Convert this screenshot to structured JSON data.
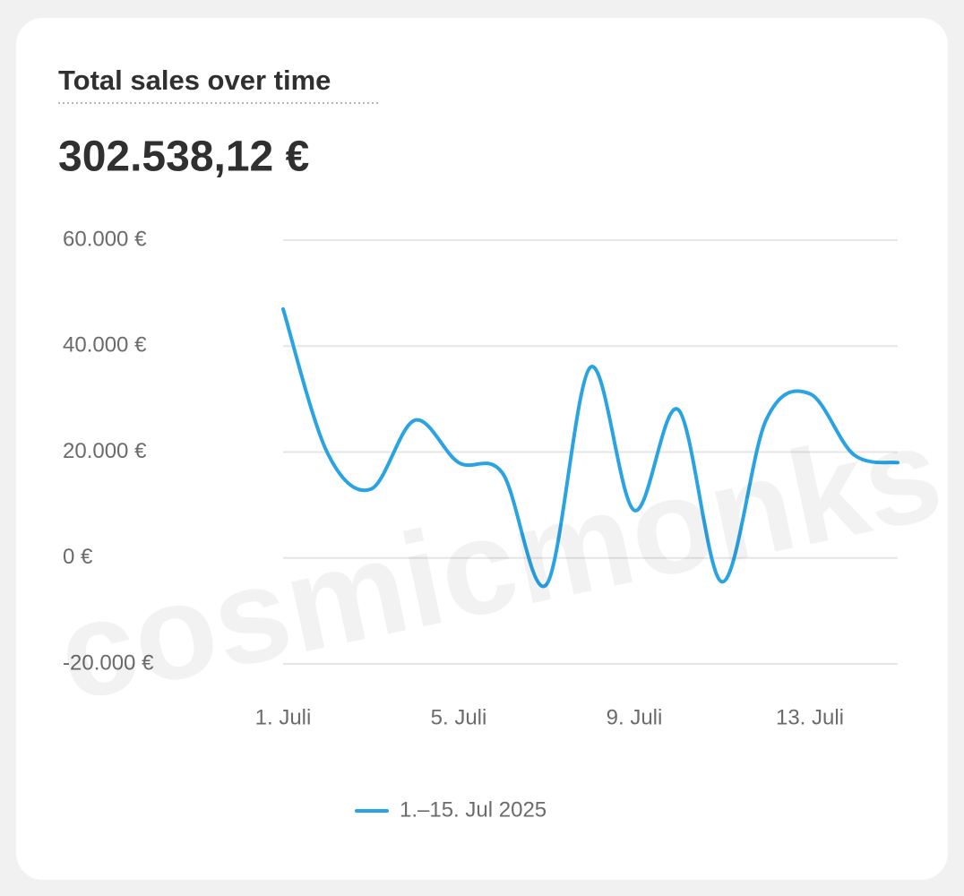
{
  "chart_data": {
    "type": "line",
    "title": "Total sales over time",
    "subtitle": "302.538,12 €",
    "watermark": "cosmicmonks",
    "categories": [
      "1. Juli",
      null,
      null,
      null,
      "5. Juli",
      null,
      null,
      null,
      "9. Juli",
      null,
      null,
      null,
      "13. Juli",
      null,
      null
    ],
    "series": [
      {
        "name": "1.–15. Jul 2025",
        "color": "#2aa3e3",
        "values": [
          47000,
          20000,
          13000,
          26000,
          18000,
          16000,
          -5000,
          36000,
          9000,
          28000,
          -4500,
          26000,
          31000,
          19500,
          18000
        ]
      }
    ],
    "ylim": [
      -20000,
      60000
    ],
    "yticks": [
      {
        "value": -20000,
        "label": "-20.000 €"
      },
      {
        "value": 0,
        "label": "0 €"
      },
      {
        "value": 20000,
        "label": "20.000 €"
      },
      {
        "value": 40000,
        "label": "40.000 €"
      },
      {
        "value": 60000,
        "label": "60.000 €"
      }
    ],
    "grid": true,
    "legend": "bottom"
  }
}
